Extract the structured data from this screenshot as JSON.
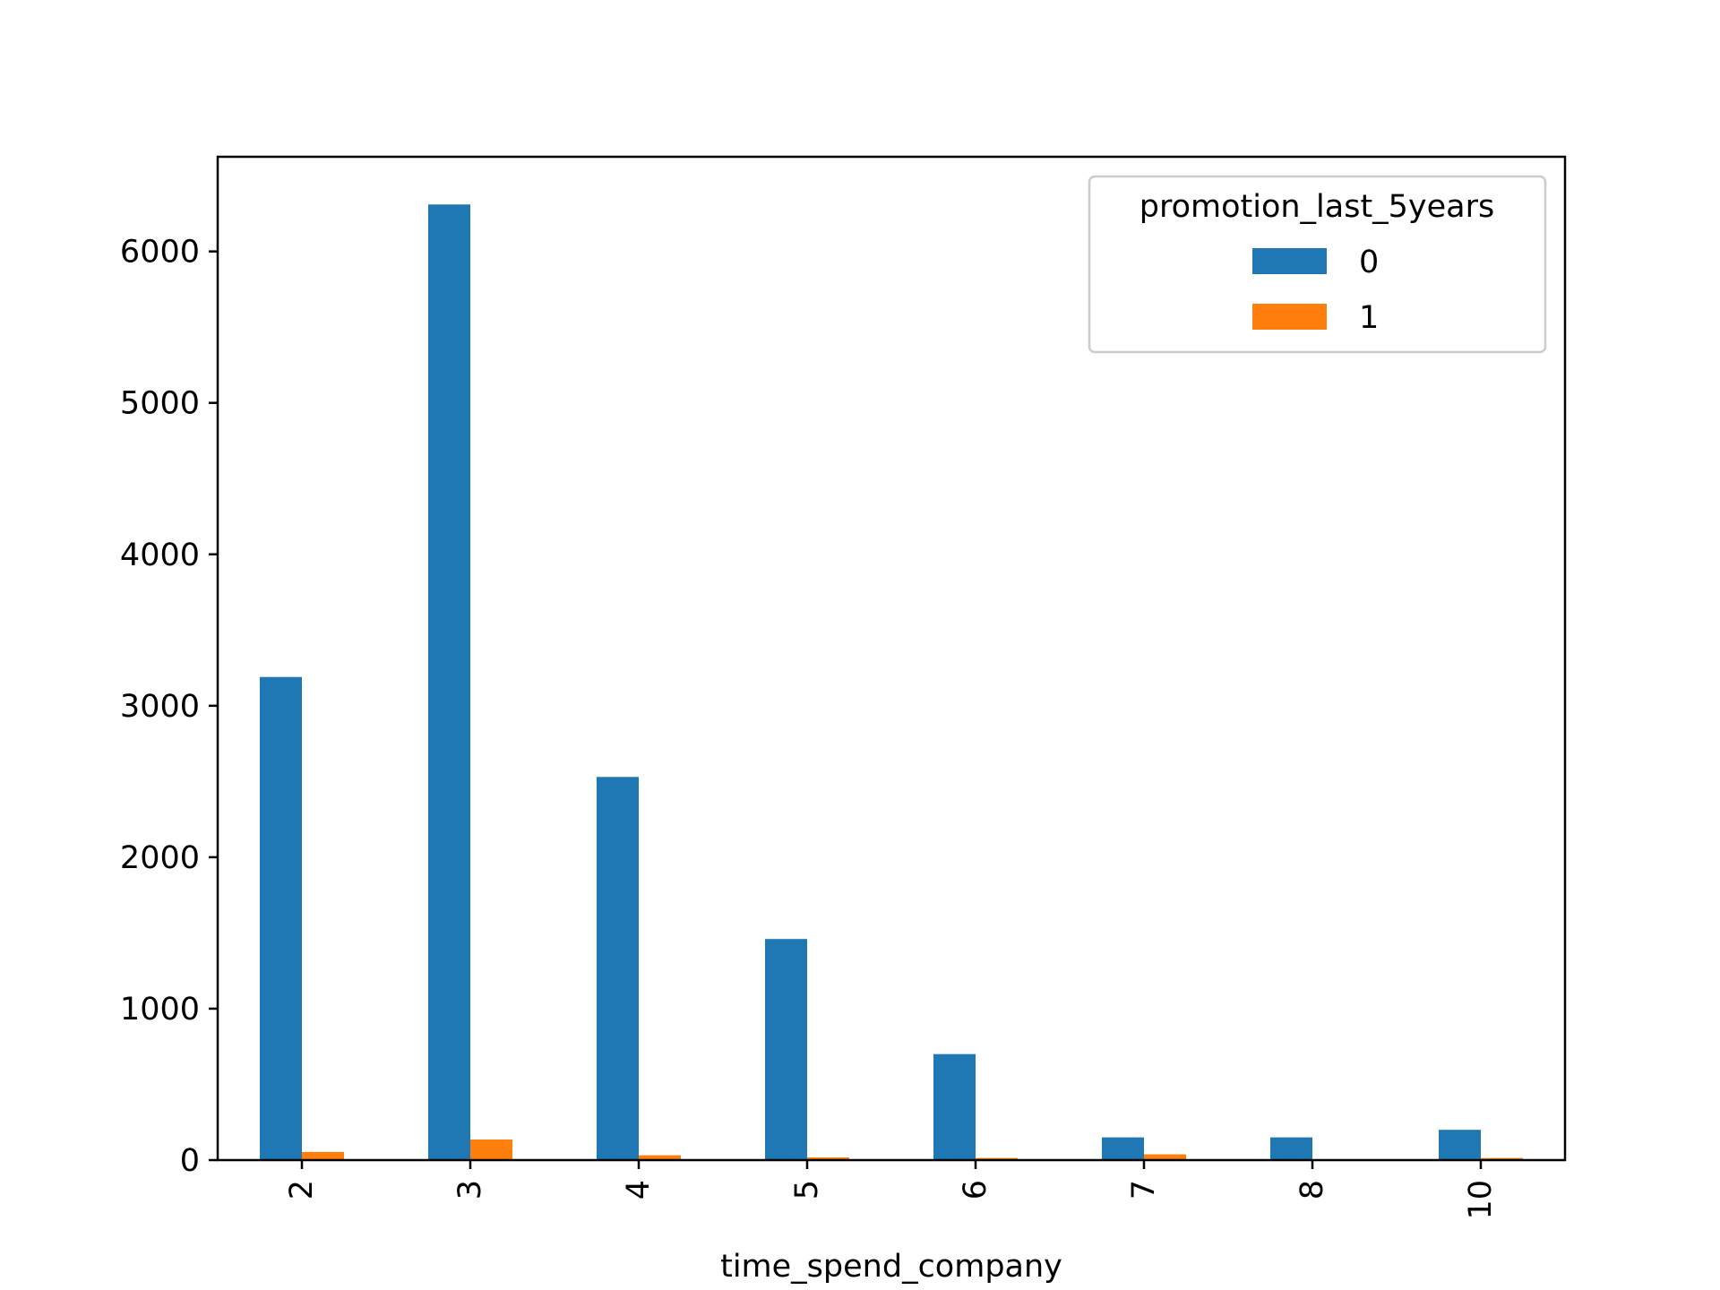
{
  "chart_data": {
    "type": "bar",
    "title": "",
    "xlabel": "time_spend_company",
    "ylabel": "",
    "categories": [
      "2",
      "3",
      "4",
      "5",
      "6",
      "7",
      "8",
      "10"
    ],
    "series": [
      {
        "name": "0",
        "color": "#1f77b4",
        "values": [
          3190,
          6310,
          2530,
          1460,
          700,
          150,
          150,
          200
        ]
      },
      {
        "name": "1",
        "color": "#ff7f0e",
        "values": [
          54,
          136,
          32,
          18,
          14,
          38,
          2,
          14
        ]
      }
    ],
    "ylim": [
      0,
      6625
    ],
    "yticks": [
      0,
      1000,
      2000,
      3000,
      4000,
      5000,
      6000
    ],
    "grid": false,
    "legend": {
      "title": "promotion_last_5years",
      "placement": "top-right"
    },
    "x_tick_rotation": "vertical"
  }
}
